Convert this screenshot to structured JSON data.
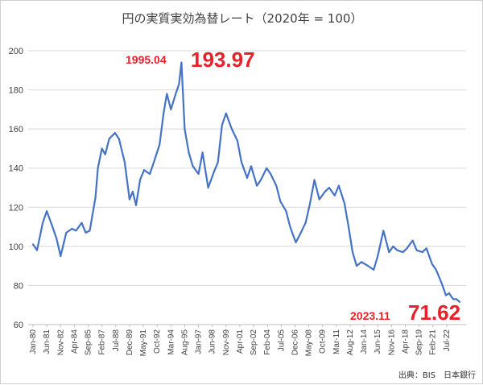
{
  "chart_data": {
    "type": "line",
    "title": "円の実質実効為替レート（2020年 = 100）",
    "xlabel": "",
    "ylabel": "",
    "ylim": [
      60,
      200
    ],
    "y_ticks": [
      "60",
      "80",
      "100",
      "120",
      "140",
      "160",
      "180",
      "200"
    ],
    "x_tick_labels": [
      "Jan-80",
      "Jun-81",
      "Nov-82",
      "Apr-84",
      "Sep-85",
      "Feb-87",
      "Jul-88",
      "Dec-89",
      "May-91",
      "Oct-92",
      "Mar-94",
      "Aug-95",
      "Jan-97",
      "Jun-98",
      "Nov-99",
      "Apr-01",
      "Sep-02",
      "Feb-04",
      "Jul-05",
      "Dec-06",
      "May-08",
      "Oct-09",
      "Mar-11",
      "Aug-12",
      "Jan-14",
      "Jun-15",
      "Nov-16",
      "Apr-18",
      "Sep-19",
      "Feb-21",
      "Jul-22"
    ],
    "grid": "horizontal",
    "series_color": "#4472c4",
    "x": [
      "1980-01",
      "1980-06",
      "1981-01",
      "1981-06",
      "1982-01",
      "1982-06",
      "1982-11",
      "1983-06",
      "1984-01",
      "1984-06",
      "1985-01",
      "1985-06",
      "1985-11",
      "1986-06",
      "1986-09",
      "1987-02",
      "1987-06",
      "1987-11",
      "1988-06",
      "1988-11",
      "1989-06",
      "1989-12",
      "1990-04",
      "1990-08",
      "1991-01",
      "1991-06",
      "1992-01",
      "1992-06",
      "1993-01",
      "1993-06",
      "1993-10",
      "1994-03",
      "1994-09",
      "1995-01",
      "1995-04",
      "1995-08",
      "1996-01",
      "1996-06",
      "1997-01",
      "1997-06",
      "1998-01",
      "1998-08",
      "1999-01",
      "1999-06",
      "1999-11",
      "2000-06",
      "2001-01",
      "2001-06",
      "2002-01",
      "2002-06",
      "2003-01",
      "2003-06",
      "2004-01",
      "2004-06",
      "2005-01",
      "2005-06",
      "2006-01",
      "2006-06",
      "2007-01",
      "2007-06",
      "2008-01",
      "2008-06",
      "2008-12",
      "2009-06",
      "2010-01",
      "2010-06",
      "2011-01",
      "2011-06",
      "2012-01",
      "2012-06",
      "2012-11",
      "2013-04",
      "2013-10",
      "2014-06",
      "2015-01",
      "2015-06",
      "2016-01",
      "2016-08",
      "2017-01",
      "2017-06",
      "2018-01",
      "2018-06",
      "2019-01",
      "2019-06",
      "2020-01",
      "2020-06",
      "2021-01",
      "2021-06",
      "2022-01",
      "2022-06",
      "2022-10",
      "2023-03",
      "2023-07",
      "2023-11"
    ],
    "series": [
      {
        "name": "",
        "values": [
          101,
          98,
          112,
          118,
          110,
          104,
          95,
          107,
          109,
          108,
          112,
          107,
          108,
          125,
          140,
          150,
          147,
          155,
          158,
          155,
          143,
          124,
          128,
          121,
          134,
          139,
          137,
          143,
          152,
          168,
          178,
          170,
          178,
          183,
          193.97,
          160,
          148,
          141,
          137,
          148,
          130,
          138,
          143,
          162,
          168,
          160,
          154,
          143,
          135,
          141,
          131,
          134,
          140,
          137,
          131,
          123,
          118,
          110,
          102,
          106,
          112,
          121,
          134,
          124,
          128,
          130,
          126,
          131,
          122,
          110,
          97,
          90,
          92,
          90,
          88,
          95,
          108,
          97,
          100,
          98,
          97,
          99,
          103,
          98,
          97,
          99,
          91,
          88,
          81,
          75,
          76,
          73,
          73,
          71.62
        ]
      }
    ],
    "annotations": [
      {
        "label": "1995.04",
        "value": "193.97"
      },
      {
        "label": "2023.11",
        "value": "71.62"
      }
    ]
  },
  "source_note": "出典：BIS　日本銀行"
}
